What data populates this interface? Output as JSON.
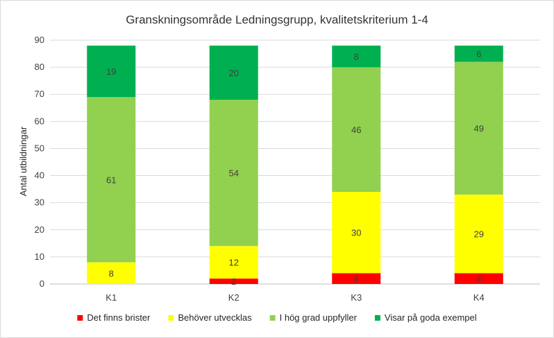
{
  "chart_data": {
    "type": "bar",
    "stacked": true,
    "title": "Granskningsområde Ledningsgrupp, kvalitetskriterium 1-4",
    "xlabel": "",
    "ylabel": "Antal utbildningar",
    "ylim": [
      0,
      90
    ],
    "yticks": [
      "0",
      "10",
      "20",
      "30",
      "40",
      "50",
      "60",
      "70",
      "80",
      "90"
    ],
    "grid": true,
    "legend_position": "bottom",
    "categories": [
      "K1",
      "K2",
      "K3",
      "K4"
    ],
    "series": [
      {
        "name": "Det finns brister",
        "color": "#ff0000",
        "values": [
          0,
          2,
          4,
          4
        ]
      },
      {
        "name": "Behöver utvecklas",
        "color": "#ffff00",
        "values": [
          8,
          12,
          30,
          29
        ]
      },
      {
        "name": "I hög grad uppfyller",
        "color": "#92d050",
        "values": [
          61,
          54,
          46,
          49
        ]
      },
      {
        "name": "Visar på goda exempel",
        "color": "#00b050",
        "values": [
          19,
          20,
          8,
          6
        ]
      }
    ]
  }
}
